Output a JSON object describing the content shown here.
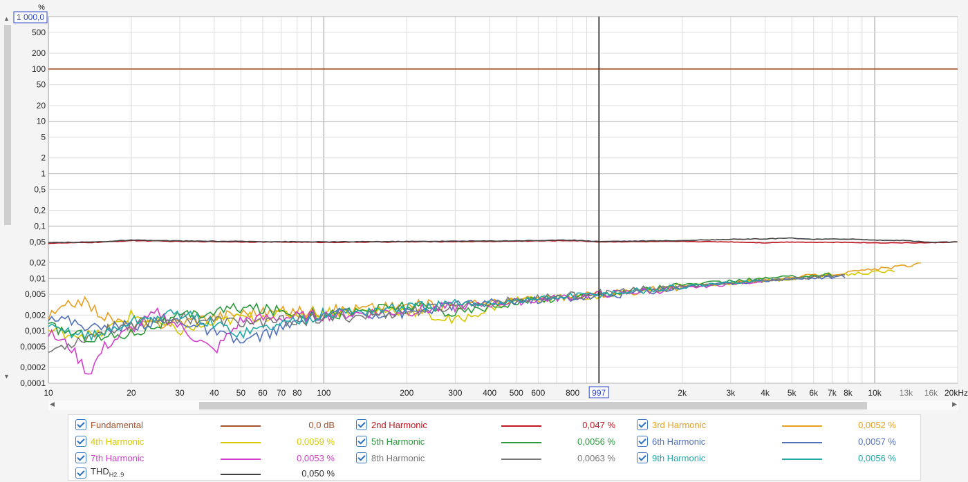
{
  "chart_data": {
    "type": "line",
    "x_scale": "log",
    "y_scale": "log",
    "xlim": [
      10,
      20000
    ],
    "ylim": [
      0.0001,
      1000
    ],
    "y_unit": "%",
    "y_top_label": "1 000,0",
    "y_ticks": [
      {
        "v": 500,
        "l": "500"
      },
      {
        "v": 200,
        "l": "200"
      },
      {
        "v": 100,
        "l": "100"
      },
      {
        "v": 50,
        "l": "50"
      },
      {
        "v": 20,
        "l": "20"
      },
      {
        "v": 10,
        "l": "10"
      },
      {
        "v": 5,
        "l": "5"
      },
      {
        "v": 2,
        "l": "2"
      },
      {
        "v": 1,
        "l": "1"
      },
      {
        "v": 0.5,
        "l": "0,5"
      },
      {
        "v": 0.2,
        "l": "0,2"
      },
      {
        "v": 0.1,
        "l": "0,1"
      },
      {
        "v": 0.05,
        "l": "0,05"
      },
      {
        "v": 0.02,
        "l": "0,02"
      },
      {
        "v": 0.01,
        "l": "0,01"
      },
      {
        "v": 0.005,
        "l": "0,005"
      },
      {
        "v": 0.002,
        "l": "0,002"
      },
      {
        "v": 0.001,
        "l": "0,001"
      },
      {
        "v": 0.0005,
        "l": "0,0005"
      },
      {
        "v": 0.0002,
        "l": "0,0002"
      },
      {
        "v": 0.0001,
        "l": "0,0001"
      }
    ],
    "x_ticks": [
      {
        "v": 10,
        "l": "10"
      },
      {
        "v": 20,
        "l": "20"
      },
      {
        "v": 30,
        "l": "30"
      },
      {
        "v": 40,
        "l": "40"
      },
      {
        "v": 50,
        "l": "50"
      },
      {
        "v": 60,
        "l": "60"
      },
      {
        "v": 70,
        "l": "70"
      },
      {
        "v": 80,
        "l": "80"
      },
      {
        "v": 100,
        "l": "100"
      },
      {
        "v": 200,
        "l": "200"
      },
      {
        "v": 300,
        "l": "300"
      },
      {
        "v": 400,
        "l": "400"
      },
      {
        "v": 500,
        "l": "500"
      },
      {
        "v": 600,
        "l": "600"
      },
      {
        "v": 800,
        "l": "800"
      },
      {
        "v": 2000,
        "l": "2k"
      },
      {
        "v": 3000,
        "l": "3k"
      },
      {
        "v": 4000,
        "l": "4k"
      },
      {
        "v": 5000,
        "l": "5k"
      },
      {
        "v": 6000,
        "l": "6k"
      },
      {
        "v": 7000,
        "l": "7k"
      },
      {
        "v": 8000,
        "l": "8k"
      },
      {
        "v": 10000,
        "l": "10k"
      },
      {
        "v": 13000,
        "l": "13k"
      },
      {
        "v": 16000,
        "l": "16k"
      },
      {
        "v": 20000,
        "l": "20kHz"
      }
    ],
    "cursor": {
      "x": 997,
      "label": "997"
    },
    "grid": true,
    "series": [
      {
        "name": "Fundamental",
        "color": "#a0522d",
        "x": [
          10,
          20000
        ],
        "y": [
          100,
          100
        ]
      },
      {
        "name": "2nd Harmonic",
        "color": "#c0141e",
        "x": [
          10,
          15,
          20,
          30,
          50,
          100,
          200,
          400,
          800,
          1000,
          2000,
          3000,
          4000,
          5000,
          6000,
          8000,
          10000,
          13000,
          16000,
          20000
        ],
        "y": [
          0.047,
          0.049,
          0.053,
          0.051,
          0.05,
          0.049,
          0.05,
          0.051,
          0.053,
          0.05,
          0.051,
          0.05,
          0.048,
          0.05,
          0.049,
          0.049,
          0.048,
          0.048,
          0.048,
          0.05
        ]
      },
      {
        "name": "3rd Harmonic",
        "color": "#e8a020",
        "x": [
          10,
          13,
          16,
          20,
          30,
          50,
          100,
          200,
          300,
          500,
          1000,
          2000,
          4000,
          8000,
          15000
        ],
        "y": [
          0.0018,
          0.004,
          0.0019,
          0.0012,
          0.0015,
          0.0022,
          0.0024,
          0.003,
          0.0032,
          0.0038,
          0.005,
          0.007,
          0.0095,
          0.013,
          0.019
        ]
      },
      {
        "name": "4th Harmonic",
        "color": "#d8c800",
        "x": [
          10,
          15,
          20,
          30,
          50,
          100,
          200,
          300,
          500,
          1000,
          2000,
          4000,
          8000,
          12000
        ],
        "y": [
          0.001,
          0.0008,
          0.002,
          0.001,
          0.0018,
          0.0023,
          0.0025,
          0.0015,
          0.004,
          0.0045,
          0.007,
          0.009,
          0.012,
          0.014
        ]
      },
      {
        "name": "5th Harmonic",
        "color": "#2a9a3a",
        "x": [
          10,
          15,
          20,
          30,
          50,
          100,
          200,
          300,
          500,
          1000,
          2000,
          4000,
          7000
        ],
        "y": [
          0.0012,
          0.0007,
          0.0009,
          0.0018,
          0.0028,
          0.002,
          0.003,
          0.0022,
          0.0035,
          0.005,
          0.0075,
          0.01,
          0.012
        ]
      },
      {
        "name": "6th Harmonic",
        "color": "#5070b8",
        "x": [
          10,
          15,
          20,
          30,
          50,
          100,
          200,
          300,
          500,
          1000,
          2000,
          4000,
          8000
        ],
        "y": [
          0.002,
          0.0011,
          0.0013,
          0.0016,
          0.0006,
          0.0021,
          0.0022,
          0.0032,
          0.0037,
          0.0045,
          0.0068,
          0.0092,
          0.011
        ]
      },
      {
        "name": "7th Harmonic",
        "color": "#d040c8",
        "x": [
          10,
          12,
          14,
          16,
          20,
          25,
          30,
          40,
          50,
          100,
          200,
          400,
          800,
          2000,
          4000
        ],
        "y": [
          0.0009,
          0.0005,
          0.00015,
          0.0005,
          0.0011,
          0.0022,
          0.0012,
          0.0004,
          0.0016,
          0.002,
          0.0024,
          0.0032,
          0.0045,
          0.0065,
          0.009
        ]
      },
      {
        "name": "8th Harmonic",
        "color": "#777777",
        "x": [
          10,
          15,
          20,
          30,
          50,
          100,
          200,
          400,
          800,
          2000,
          4000,
          8000
        ],
        "y": [
          0.0004,
          0.0009,
          0.0014,
          0.0018,
          0.0014,
          0.0017,
          0.0023,
          0.0035,
          0.0048,
          0.007,
          0.0092,
          0.012
        ]
      },
      {
        "name": "9th Harmonic",
        "color": "#20a8a8",
        "x": [
          10,
          15,
          20,
          30,
          50,
          100,
          200,
          400,
          800,
          2000,
          4000
        ],
        "y": [
          0.0011,
          0.0008,
          0.0015,
          0.0022,
          0.0009,
          0.0021,
          0.0028,
          0.0034,
          0.0046,
          0.0068,
          0.0095
        ]
      },
      {
        "name": "THD",
        "color": "#404040",
        "x": [
          10,
          15,
          20,
          30,
          50,
          100,
          200,
          400,
          800,
          1000,
          2000,
          3000,
          4000,
          5000,
          6000,
          8000,
          10000,
          13000,
          16000,
          20000
        ],
        "y": [
          0.048,
          0.05,
          0.054,
          0.052,
          0.051,
          0.05,
          0.051,
          0.052,
          0.054,
          0.051,
          0.053,
          0.056,
          0.057,
          0.059,
          0.056,
          0.057,
          0.054,
          0.053,
          0.049,
          0.05
        ]
      }
    ]
  },
  "legend": {
    "fundamental": {
      "label": "Fundamental",
      "value": "0,0 dB",
      "color": "#a0522d"
    },
    "h2": {
      "label": "2nd Harmonic",
      "value": "0,047 %",
      "color": "#c0141e"
    },
    "h3": {
      "label": "3rd Harmonic",
      "value": "0,0052 %",
      "color": "#e8a020"
    },
    "h4": {
      "label": "4th Harmonic",
      "value": "0,0059 %",
      "color": "#d8c800"
    },
    "h5": {
      "label": "5th Harmonic",
      "value": "0,0056 %",
      "color": "#2a9a3a"
    },
    "h6": {
      "label": "6th Harmonic",
      "value": "0,0057 %",
      "color": "#5070b8"
    },
    "h7": {
      "label": "7th Harmonic",
      "value": "0,0053 %",
      "color": "#d040c8"
    },
    "h8": {
      "label": "8th Harmonic",
      "value": "0,0063 %",
      "color": "#777777"
    },
    "h9": {
      "label": "9th Harmonic",
      "value": "0,0056 %",
      "color": "#20a8a8"
    },
    "thd": {
      "label": "THD",
      "sub": "H2..9",
      "value": "0,050 %",
      "color": "#404040"
    }
  }
}
